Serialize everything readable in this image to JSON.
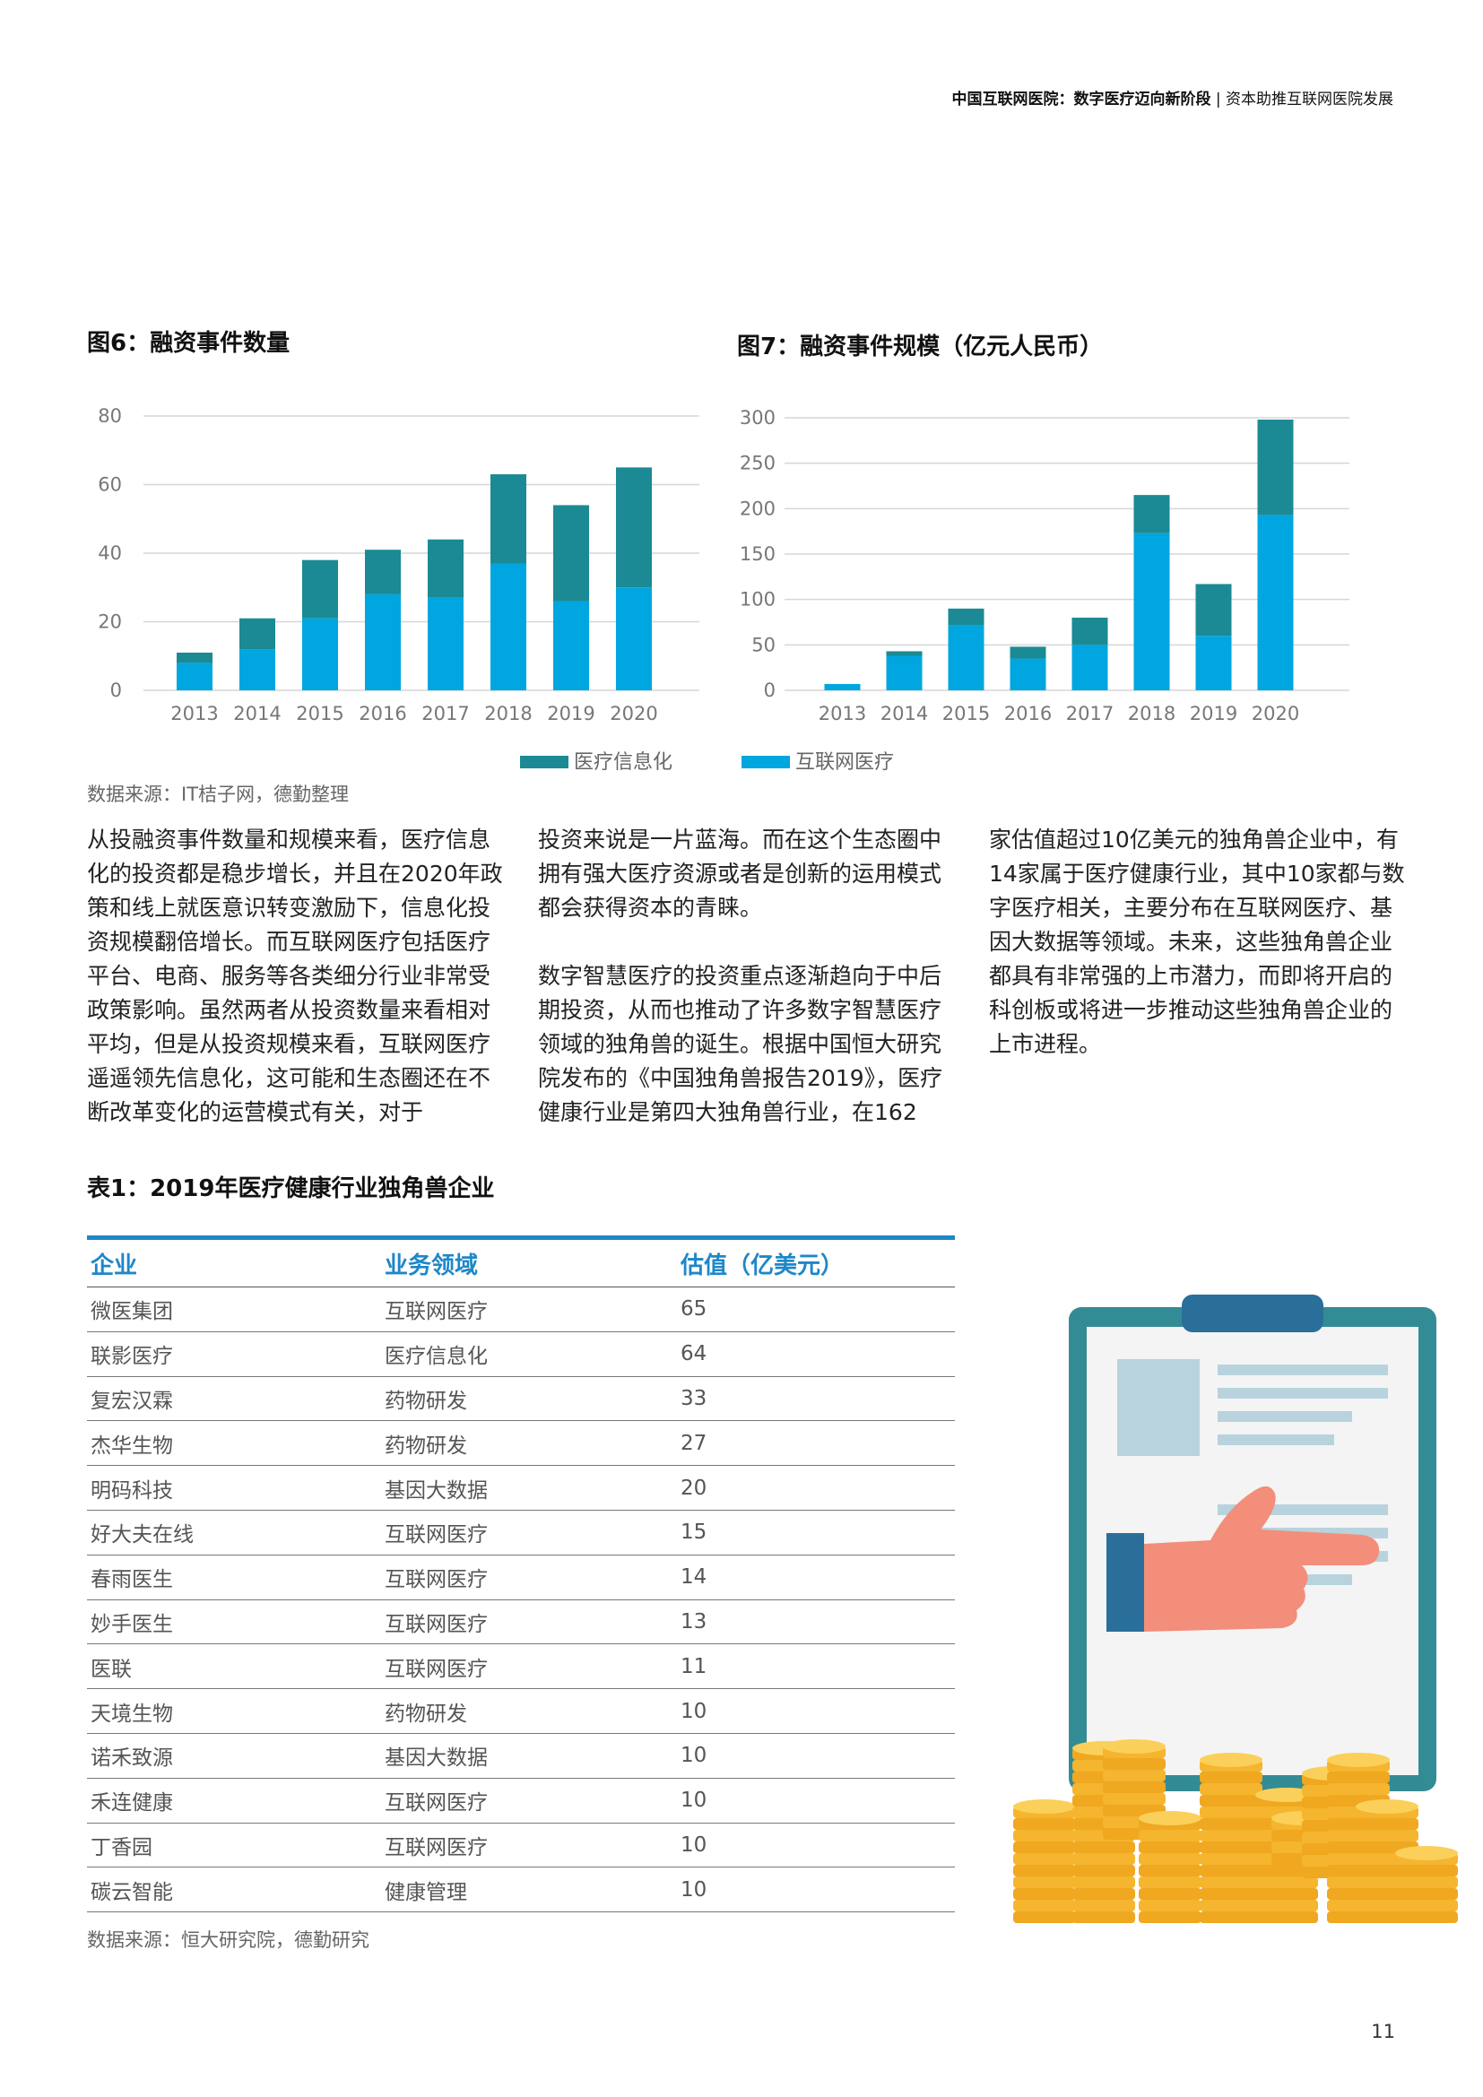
{
  "header": {
    "bold": "中国互联网医院：数字医疗迈向新阶段",
    "separator": "|",
    "normal": "资本助推互联网医院发展"
  },
  "fig6": {
    "title": "图6：融资事件数量"
  },
  "fig7": {
    "title": "图7：融资事件规模（亿元人民币）"
  },
  "legend": {
    "series1": "医疗信息化",
    "series2": "互联网医疗"
  },
  "colors": {
    "series1": "#1b8a94",
    "series2": "#00a6df",
    "accent": "#1e87c8"
  },
  "chart_data": [
    {
      "type": "bar",
      "stacked": true,
      "title": "图6：融资事件数量",
      "categories": [
        "2013",
        "2014",
        "2015",
        "2016",
        "2017",
        "2018",
        "2019",
        "2020"
      ],
      "series": [
        {
          "name": "互联网医疗",
          "values": [
            8,
            12,
            21,
            28,
            27,
            37,
            26,
            30
          ]
        },
        {
          "name": "医疗信息化",
          "values": [
            3,
            9,
            17,
            13,
            17,
            26,
            28,
            35
          ]
        }
      ],
      "yticks": [
        0,
        20,
        40,
        60,
        80
      ],
      "ylim": [
        0,
        80
      ],
      "grid": true,
      "legend": "bottom"
    },
    {
      "type": "bar",
      "stacked": true,
      "title": "图7：融资事件规模（亿元人民币）",
      "categories": [
        "2013",
        "2014",
        "2015",
        "2016",
        "2017",
        "2018",
        "2019",
        "2020"
      ],
      "series": [
        {
          "name": "互联网医疗",
          "values": [
            7,
            38,
            72,
            35,
            50,
            173,
            60,
            193
          ]
        },
        {
          "name": "医疗信息化",
          "values": [
            0,
            5,
            18,
            13,
            30,
            42,
            57,
            105
          ]
        }
      ],
      "yticks": [
        0,
        50,
        100,
        150,
        200,
        250,
        300
      ],
      "ylim": [
        0,
        300
      ],
      "grid": true,
      "legend": "bottom"
    }
  ],
  "source1": "数据来源：IT桔子网，德勤整理",
  "body": {
    "col1_p1": "从投融资事件数量和规模来看，医疗信息化的投资都是稳步增长，并且在2020年政策和线上就医意识转变激励下，信息化投资规模翻倍增长。而互联网医疗包括医疗平台、电商、服务等各类细分行业非常受政策影响。虽然两者从投资数量来看相对平均，但是从投资规模来看，互联网医疗遥遥领先信息化，这可能和生态圈还在不断改革变化的运营模式有关，对于",
    "col2_p1": "投资来说是一片蓝海。而在这个生态圈中拥有强大医疗资源或者是创新的运用模式都会获得资本的青睐。",
    "col2_p2": "数字智慧医疗的投资重点逐渐趋向于中后期投资，从而也推动了许多数字智慧医疗领域的独角兽的诞生。根据中国恒大研究院发布的《中国独角兽报告2019》，医疗健康行业是第四大独角兽行业，在162",
    "col3_p1": "家估值超过10亿美元的独角兽企业中，有14家属于医疗健康行业，其中10家都与数字医疗相关，主要分布在互联网医疗、基因大数据等领域。未来，这些独角兽企业都具有非常强的上市潜力，而即将开启的科创板或将进一步推动这些独角兽企业的上市进程。"
  },
  "table1": {
    "title": "表1：2019年医疗健康行业独角兽企业",
    "headers": [
      "企业",
      "业务领域",
      "估值（亿美元）"
    ],
    "rows": [
      [
        "微医集团",
        "互联网医疗",
        "65"
      ],
      [
        "联影医疗",
        "医疗信息化",
        "64"
      ],
      [
        "复宏汉霖",
        "药物研发",
        "33"
      ],
      [
        "杰华生物",
        "药物研发",
        "27"
      ],
      [
        "明码科技",
        "基因大数据",
        "20"
      ],
      [
        "好大夫在线",
        "互联网医疗",
        "15"
      ],
      [
        "春雨医生",
        "互联网医疗",
        "14"
      ],
      [
        "妙手医生",
        "互联网医疗",
        "13"
      ],
      [
        "医联",
        "互联网医疗",
        "11"
      ],
      [
        "天境生物",
        "药物研发",
        "10"
      ],
      [
        "诺禾致源",
        "基因大数据",
        "10"
      ],
      [
        "禾连健康",
        "互联网医疗",
        "10"
      ],
      [
        "丁香园",
        "互联网医疗",
        "10"
      ],
      [
        "碳云智能",
        "健康管理",
        "10"
      ]
    ]
  },
  "source2": "数据来源：恒大研究院，德勤研究",
  "page_number": "11"
}
